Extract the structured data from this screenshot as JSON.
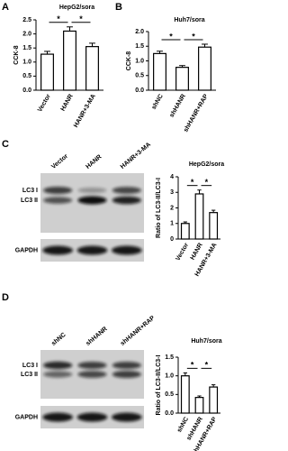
{
  "panel_labels": [
    "A",
    "B",
    "C",
    "D"
  ],
  "blots": [
    {
      "lanes": [
        "Vector",
        "HANR",
        "HANR+3-MA"
      ],
      "rows": [
        "LC3 I",
        "LC3 II"
      ],
      "control": "GAPDH"
    },
    {
      "lanes": [
        "shNC",
        "shHANR",
        "shHANR+RAP"
      ],
      "rows": [
        "LC3 I",
        "LC3 II"
      ],
      "control": "GAPDH"
    }
  ],
  "chart_data": [
    {
      "type": "bar",
      "title": "HepG2/sora",
      "y_label": "CCK-8",
      "categories": [
        "Vector",
        "HANR",
        "HANR+3-MA"
      ],
      "values": [
        1.28,
        2.1,
        1.55
      ],
      "errors": [
        0.1,
        0.15,
        0.12
      ],
      "color": "#ffffff",
      "ylim": [
        0,
        2.5
      ],
      "yticks": [
        {
          "value": 0,
          "label": "0.0"
        },
        0.5,
        {
          "value": 1,
          "label": "1.0"
        },
        1.5,
        {
          "value": 2,
          "label": "2.0"
        },
        2.5
      ],
      "annotations": [
        "*",
        "*"
      ]
    },
    {
      "type": "bar",
      "title": "Huh7/sora",
      "y_label": "CCK-8",
      "categories": [
        "shNC",
        "shHANR",
        "shHANR+RAP"
      ],
      "values": [
        1.25,
        0.78,
        1.47
      ],
      "errors": [
        0.08,
        0.06,
        0.1
      ],
      "color": "#ffffff",
      "ylim": [
        0,
        2
      ],
      "yticks": [
        {
          "value": 0,
          "label": "0.0"
        },
        0.5,
        {
          "value": 1,
          "label": "1.0"
        },
        1.5,
        {
          "value": 2,
          "label": "2.0"
        }
      ],
      "annotations": [
        "*",
        "*"
      ]
    },
    {
      "type": "bar",
      "title": "HepG2/sora",
      "y_label": "Ratio of LC3-II/LC3-I",
      "categories": [
        "Vector",
        "HANR",
        "HANR+3-MA"
      ],
      "values": [
        1.0,
        2.9,
        1.7
      ],
      "errors": [
        0.1,
        0.25,
        0.15
      ],
      "color": "#ffffff",
      "ylim": [
        0,
        4
      ],
      "yticks": [
        0,
        1,
        2,
        3,
        4
      ],
      "annotations": [
        "*",
        "*"
      ]
    },
    {
      "type": "bar",
      "title": "Huh7/sora",
      "y_label": "Ratio of LC3-II/LC3-I",
      "categories": [
        "shNC",
        "shHANR",
        "shHANR+RAP"
      ],
      "values": [
        1.0,
        0.42,
        0.7
      ],
      "errors": [
        0.08,
        0.04,
        0.06
      ],
      "color": "#ffffff",
      "ylim": [
        0,
        1.5
      ],
      "yticks": [
        {
          "value": 0,
          "label": "0.0"
        },
        0.5,
        {
          "value": 1,
          "label": "1.0"
        },
        1.5
      ],
      "annotations": [
        "*",
        "*"
      ]
    }
  ]
}
